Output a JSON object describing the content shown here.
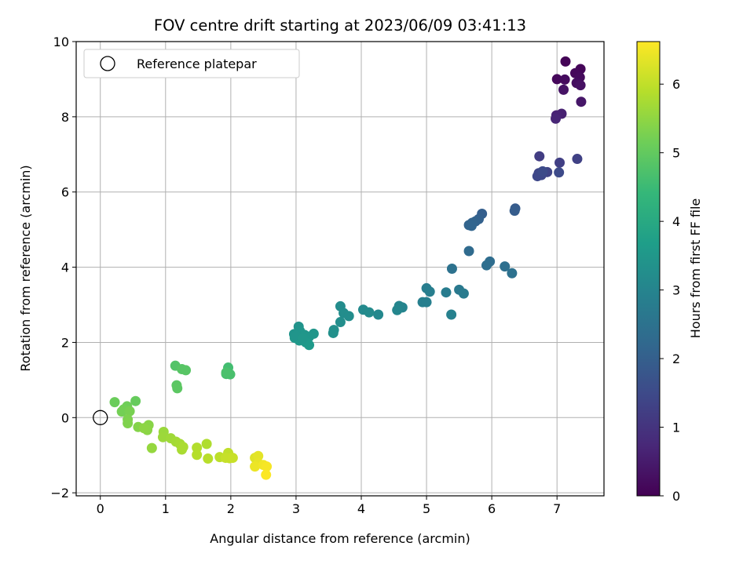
{
  "chart_data": {
    "type": "scatter",
    "title": "FOV centre drift starting at 2023/06/09 03:41:13",
    "xlabel": "Angular distance from reference (arcmin)",
    "ylabel": "Rotation from reference (arcmin)",
    "xlim": [
      -0.37,
      7.72
    ],
    "ylim": [
      -2.08,
      10.0
    ],
    "x_ticks": [
      0,
      1,
      2,
      3,
      4,
      5,
      6,
      7
    ],
    "y_ticks": [
      -2,
      0,
      2,
      4,
      6,
      8,
      10
    ],
    "grid": true,
    "legend": {
      "placement": "top-left",
      "entries": [
        "Reference platepar"
      ]
    },
    "reference_point": {
      "x": 0,
      "y": 0
    },
    "colorbar": {
      "label": "Hours from first FF file",
      "range": [
        0,
        6.62
      ],
      "ticks": [
        0,
        1,
        2,
        3,
        4,
        5,
        6
      ],
      "colormap": "viridis",
      "colors": [
        "#440154",
        "#482878",
        "#3e4989",
        "#31688e",
        "#26828e",
        "#1f9e89",
        "#35b779",
        "#6ece58",
        "#b5de2b",
        "#fde725"
      ]
    },
    "points": [
      {
        "x": 7.13,
        "y": 9.47,
        "t": 0.05
      },
      {
        "x": 7.36,
        "y": 9.27,
        "t": 0.1
      },
      {
        "x": 7.28,
        "y": 9.16,
        "t": 0.15
      },
      {
        "x": 7.0,
        "y": 9.0,
        "t": 0.12
      },
      {
        "x": 7.12,
        "y": 8.99,
        "t": 0.2
      },
      {
        "x": 7.35,
        "y": 9.05,
        "t": 0.18
      },
      {
        "x": 7.3,
        "y": 8.9,
        "t": 0.25
      },
      {
        "x": 7.36,
        "y": 8.84,
        "t": 0.3
      },
      {
        "x": 7.1,
        "y": 8.72,
        "t": 0.35
      },
      {
        "x": 7.37,
        "y": 8.4,
        "t": 0.4
      },
      {
        "x": 7.07,
        "y": 8.08,
        "t": 0.6
      },
      {
        "x": 6.99,
        "y": 8.04,
        "t": 0.65
      },
      {
        "x": 6.98,
        "y": 7.95,
        "t": 0.7
      },
      {
        "x": 6.73,
        "y": 6.95,
        "t": 1.2
      },
      {
        "x": 7.04,
        "y": 6.78,
        "t": 1.25
      },
      {
        "x": 7.31,
        "y": 6.88,
        "t": 1.3
      },
      {
        "x": 6.85,
        "y": 6.53,
        "t": 1.35
      },
      {
        "x": 6.72,
        "y": 6.5,
        "t": 1.4
      },
      {
        "x": 6.76,
        "y": 6.45,
        "t": 1.42
      },
      {
        "x": 6.7,
        "y": 6.42,
        "t": 1.45
      },
      {
        "x": 7.03,
        "y": 6.52,
        "t": 1.5
      },
      {
        "x": 6.78,
        "y": 6.55,
        "t": 1.52
      },
      {
        "x": 6.36,
        "y": 5.56,
        "t": 1.9
      },
      {
        "x": 6.35,
        "y": 5.5,
        "t": 1.95
      },
      {
        "x": 5.85,
        "y": 5.42,
        "t": 2.0
      },
      {
        "x": 5.8,
        "y": 5.28,
        "t": 2.05
      },
      {
        "x": 5.75,
        "y": 5.22,
        "t": 2.08
      },
      {
        "x": 5.7,
        "y": 5.18,
        "t": 2.1
      },
      {
        "x": 5.65,
        "y": 5.12,
        "t": 2.12
      },
      {
        "x": 5.69,
        "y": 5.1,
        "t": 2.14
      },
      {
        "x": 5.65,
        "y": 4.43,
        "t": 2.3
      },
      {
        "x": 5.97,
        "y": 4.15,
        "t": 2.35
      },
      {
        "x": 5.92,
        "y": 4.05,
        "t": 2.38
      },
      {
        "x": 6.2,
        "y": 4.02,
        "t": 2.4
      },
      {
        "x": 6.31,
        "y": 3.84,
        "t": 2.45
      },
      {
        "x": 5.39,
        "y": 3.96,
        "t": 2.5
      },
      {
        "x": 5.5,
        "y": 3.4,
        "t": 2.7
      },
      {
        "x": 5.57,
        "y": 3.3,
        "t": 2.75
      },
      {
        "x": 5.3,
        "y": 3.33,
        "t": 2.78
      },
      {
        "x": 5.0,
        "y": 3.44,
        "t": 2.8
      },
      {
        "x": 5.05,
        "y": 3.35,
        "t": 2.82
      },
      {
        "x": 4.94,
        "y": 3.07,
        "t": 2.85
      },
      {
        "x": 5.0,
        "y": 3.07,
        "t": 2.87
      },
      {
        "x": 5.38,
        "y": 2.74,
        "t": 2.9
      },
      {
        "x": 4.63,
        "y": 2.93,
        "t": 3.0
      },
      {
        "x": 4.58,
        "y": 2.97,
        "t": 3.02
      },
      {
        "x": 4.55,
        "y": 2.86,
        "t": 3.05
      },
      {
        "x": 4.26,
        "y": 2.74,
        "t": 3.1
      },
      {
        "x": 4.03,
        "y": 2.87,
        "t": 3.15
      },
      {
        "x": 4.12,
        "y": 2.8,
        "t": 3.17
      },
      {
        "x": 3.68,
        "y": 2.96,
        "t": 3.2
      },
      {
        "x": 3.73,
        "y": 2.78,
        "t": 3.22
      },
      {
        "x": 3.81,
        "y": 2.7,
        "t": 3.24
      },
      {
        "x": 3.68,
        "y": 2.54,
        "t": 3.26
      },
      {
        "x": 3.58,
        "y": 2.33,
        "t": 3.3
      },
      {
        "x": 3.57,
        "y": 2.25,
        "t": 3.32
      },
      {
        "x": 3.04,
        "y": 2.42,
        "t": 3.4
      },
      {
        "x": 2.97,
        "y": 2.22,
        "t": 3.42
      },
      {
        "x": 3.06,
        "y": 2.3,
        "t": 3.44
      },
      {
        "x": 3.13,
        "y": 2.2,
        "t": 3.46
      },
      {
        "x": 3.2,
        "y": 2.15,
        "t": 3.47
      },
      {
        "x": 3.27,
        "y": 2.23,
        "t": 3.48
      },
      {
        "x": 2.98,
        "y": 2.12,
        "t": 3.5
      },
      {
        "x": 3.05,
        "y": 2.05,
        "t": 3.52
      },
      {
        "x": 3.15,
        "y": 2.0,
        "t": 3.54
      },
      {
        "x": 3.2,
        "y": 1.93,
        "t": 3.56
      },
      {
        "x": 3.0,
        "y": 2.18,
        "t": 3.45
      },
      {
        "x": 3.1,
        "y": 2.1,
        "t": 3.49
      },
      {
        "x": 1.96,
        "y": 1.33,
        "t": 4.6
      },
      {
        "x": 1.93,
        "y": 1.16,
        "t": 4.65
      },
      {
        "x": 1.99,
        "y": 1.15,
        "t": 4.67
      },
      {
        "x": 1.93,
        "y": 1.2,
        "t": 4.7
      },
      {
        "x": 1.15,
        "y": 1.38,
        "t": 4.8
      },
      {
        "x": 1.25,
        "y": 1.29,
        "t": 4.85
      },
      {
        "x": 1.31,
        "y": 1.26,
        "t": 4.87
      },
      {
        "x": 1.17,
        "y": 0.86,
        "t": 4.9
      },
      {
        "x": 1.18,
        "y": 0.78,
        "t": 4.92
      },
      {
        "x": 0.54,
        "y": 0.44,
        "t": 5.05
      },
      {
        "x": 0.22,
        "y": 0.41,
        "t": 5.1
      },
      {
        "x": 0.41,
        "y": 0.3,
        "t": 5.15
      },
      {
        "x": 0.36,
        "y": 0.22,
        "t": 5.18
      },
      {
        "x": 0.33,
        "y": 0.16,
        "t": 5.2
      },
      {
        "x": 0.45,
        "y": 0.17,
        "t": 5.25
      },
      {
        "x": 0.42,
        "y": -0.05,
        "t": 5.3
      },
      {
        "x": 0.42,
        "y": -0.15,
        "t": 5.33
      },
      {
        "x": 0.58,
        "y": -0.25,
        "t": 5.38
      },
      {
        "x": 0.74,
        "y": -0.2,
        "t": 5.42
      },
      {
        "x": 0.72,
        "y": -0.33,
        "t": 5.45
      },
      {
        "x": 0.67,
        "y": -0.28,
        "t": 5.47
      },
      {
        "x": 0.79,
        "y": -0.81,
        "t": 5.55
      },
      {
        "x": 0.97,
        "y": -0.38,
        "t": 5.6
      },
      {
        "x": 0.96,
        "y": -0.52,
        "t": 5.63
      },
      {
        "x": 1.08,
        "y": -0.55,
        "t": 5.66
      },
      {
        "x": 1.16,
        "y": -0.64,
        "t": 5.7
      },
      {
        "x": 1.22,
        "y": -0.7,
        "t": 5.73
      },
      {
        "x": 1.25,
        "y": -0.85,
        "t": 5.76
      },
      {
        "x": 1.27,
        "y": -0.78,
        "t": 5.78
      },
      {
        "x": 1.63,
        "y": -0.7,
        "t": 5.82
      },
      {
        "x": 1.48,
        "y": -0.8,
        "t": 5.85
      },
      {
        "x": 1.48,
        "y": -0.99,
        "t": 5.88
      },
      {
        "x": 1.65,
        "y": -1.09,
        "t": 5.92
      },
      {
        "x": 1.83,
        "y": -1.05,
        "t": 5.96
      },
      {
        "x": 1.96,
        "y": -0.94,
        "t": 6.0
      },
      {
        "x": 1.98,
        "y": -1.08,
        "t": 6.03
      },
      {
        "x": 1.92,
        "y": -1.07,
        "t": 6.06
      },
      {
        "x": 2.03,
        "y": -1.07,
        "t": 6.08
      },
      {
        "x": 2.37,
        "y": -1.07,
        "t": 6.3
      },
      {
        "x": 2.42,
        "y": -1.02,
        "t": 6.35
      },
      {
        "x": 2.42,
        "y": -1.21,
        "t": 6.4
      },
      {
        "x": 2.37,
        "y": -1.3,
        "t": 6.45
      },
      {
        "x": 2.5,
        "y": -1.26,
        "t": 6.5
      },
      {
        "x": 2.55,
        "y": -1.3,
        "t": 6.55
      },
      {
        "x": 2.54,
        "y": -1.52,
        "t": 6.6
      }
    ]
  }
}
